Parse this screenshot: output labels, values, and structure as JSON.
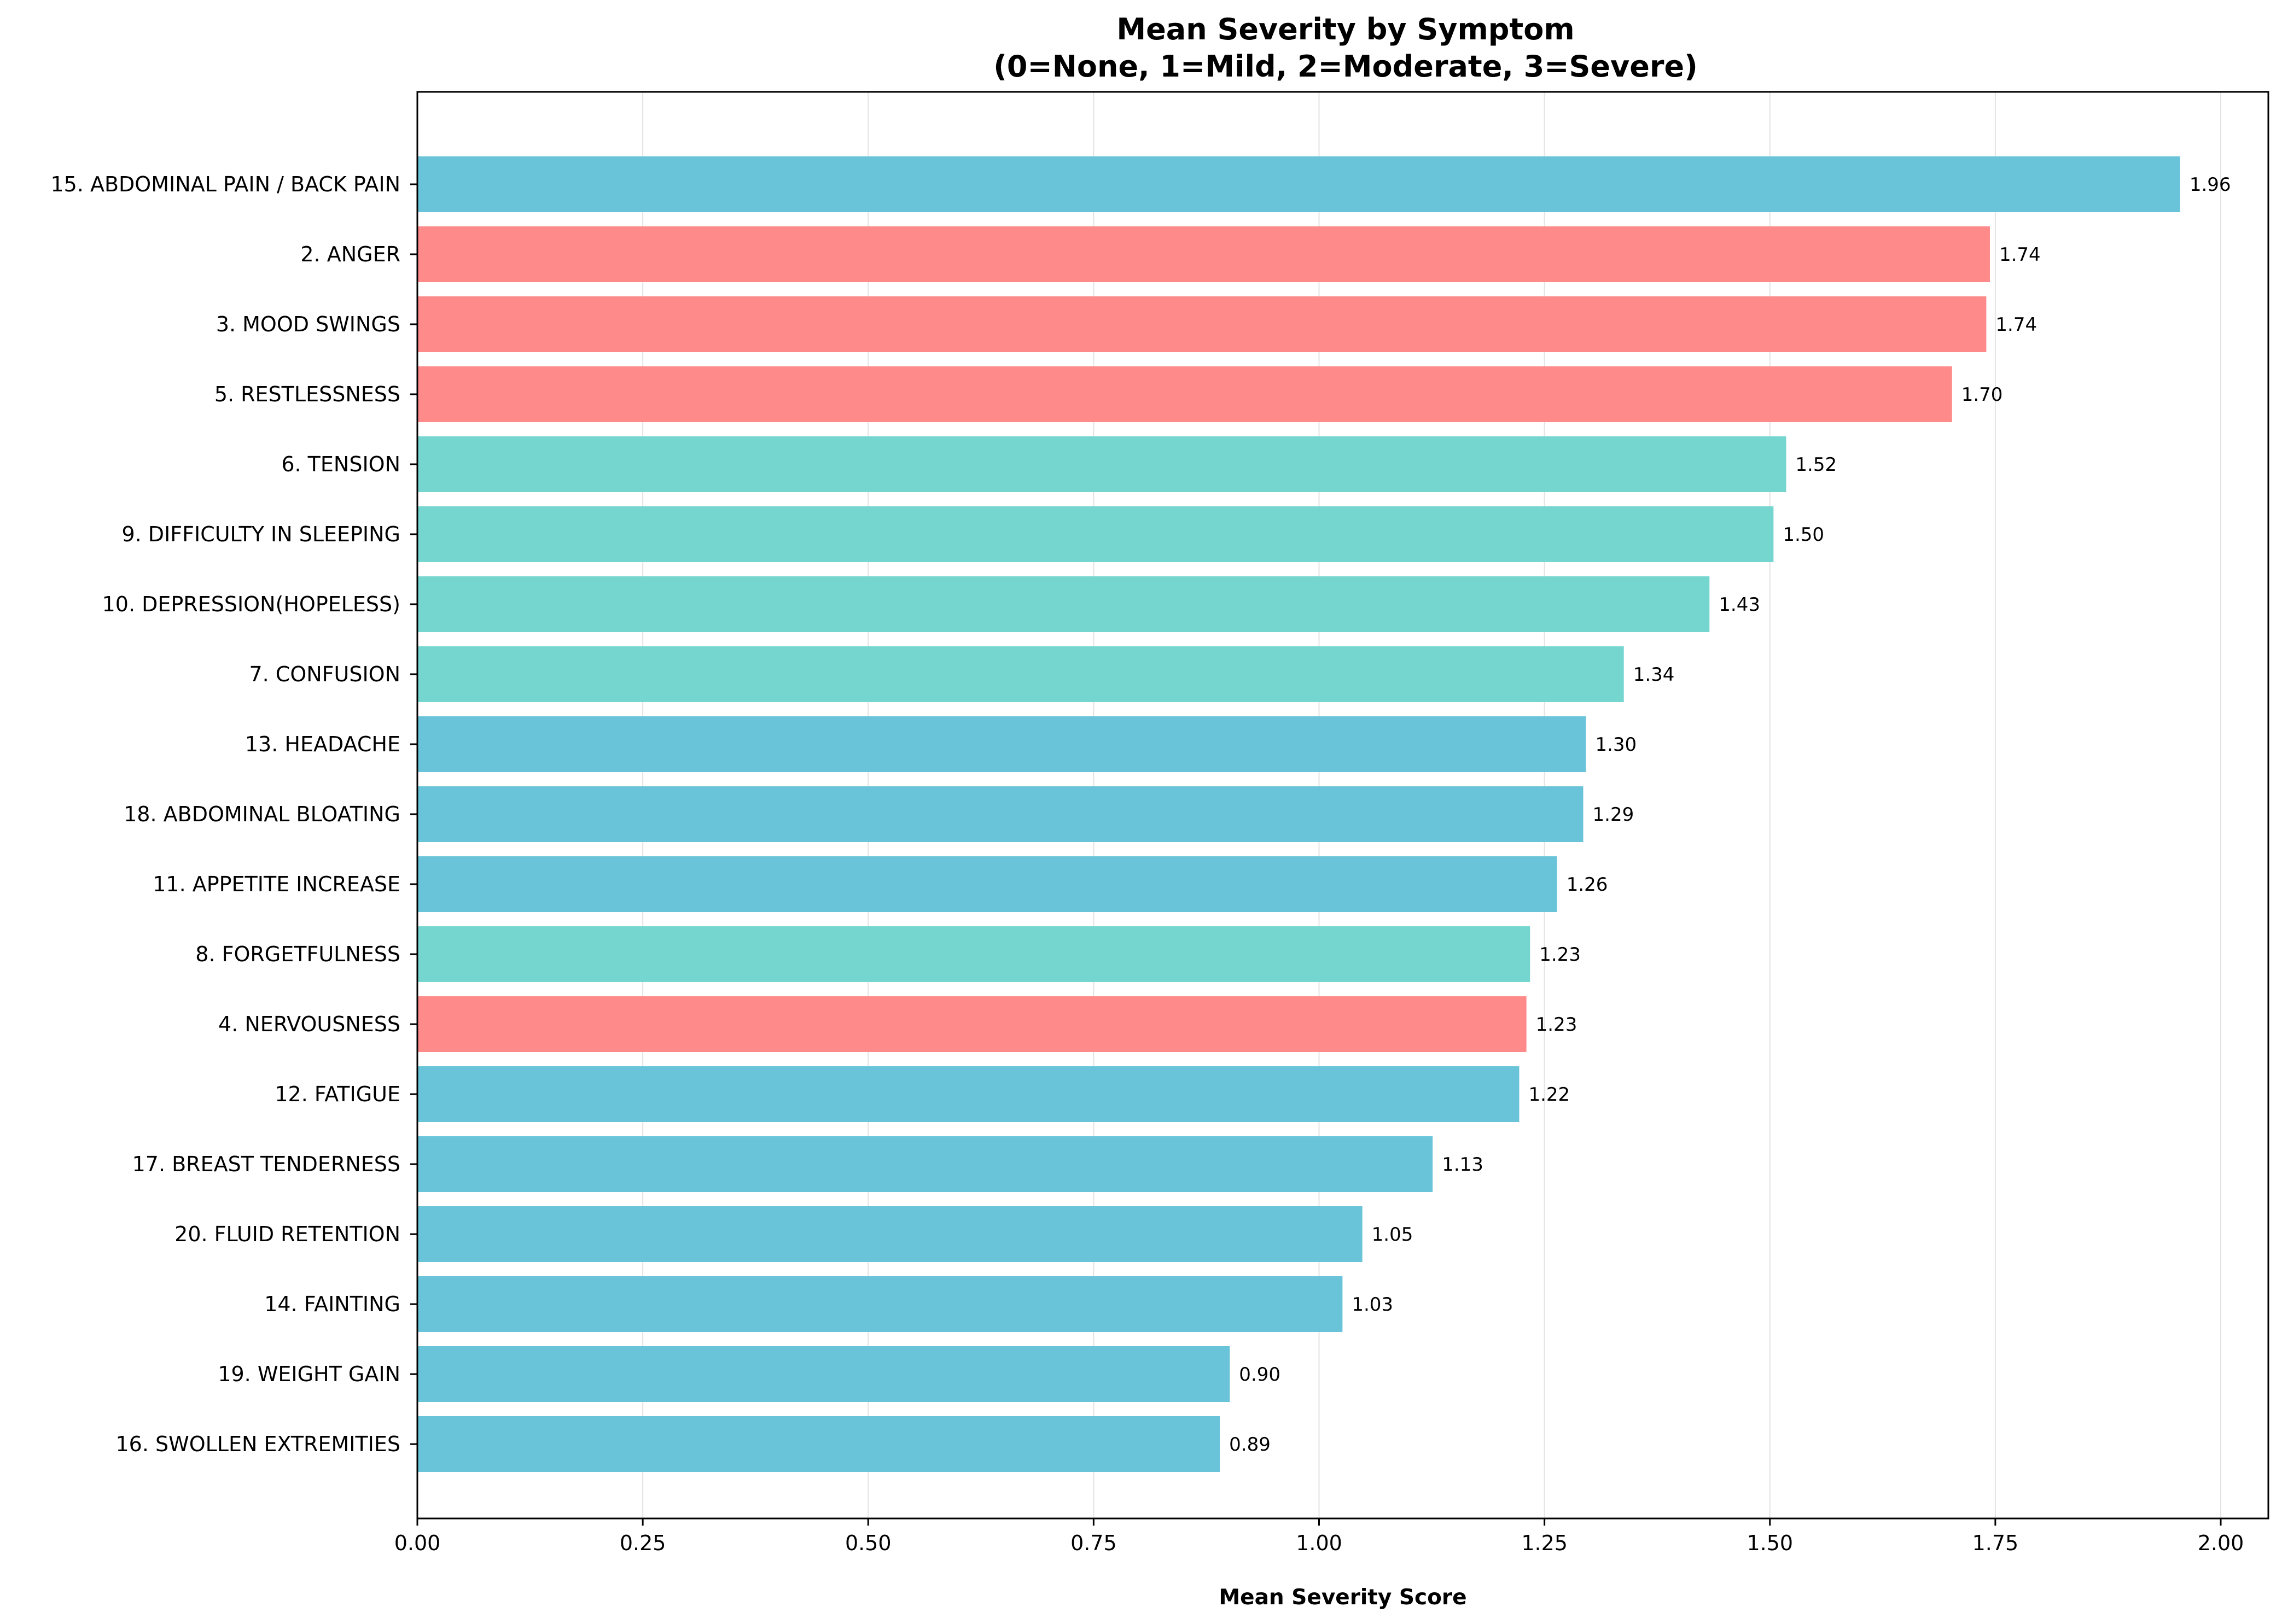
{
  "chart_data": {
    "type": "bar",
    "orientation": "horizontal",
    "title_lines": [
      "Mean Severity by Symptom",
      "(0=None, 1=Mild, 2=Moderate, 3=Severe)"
    ],
    "xlabel": "Mean Severity Score",
    "ylabel": "",
    "xlim": [
      0,
      2.05
    ],
    "xticks": [
      "0.00",
      "0.25",
      "0.50",
      "0.75",
      "1.00",
      "1.25",
      "1.50",
      "1.75",
      "2.00"
    ],
    "grid": "vertical",
    "colors": {
      "physical": "#6AC4D9",
      "emotional": "#FF8A8A",
      "cognitive": "#75D6CF"
    },
    "bars": [
      {
        "label": "15. ABDOMINAL PAIN / BACK PAIN",
        "value": 1.955,
        "text": "1.96",
        "color": "#6AC4D9"
      },
      {
        "label": "2. ANGER",
        "value": 1.744,
        "text": "1.74",
        "color": "#FF8A8A"
      },
      {
        "label": "3. MOOD SWINGS",
        "value": 1.74,
        "text": "1.74",
        "color": "#FF8A8A"
      },
      {
        "label": "5. RESTLESSNESS",
        "value": 1.702,
        "text": "1.70",
        "color": "#FF8A8A"
      },
      {
        "label": "6. TENSION",
        "value": 1.518,
        "text": "1.52",
        "color": "#75D6CF"
      },
      {
        "label": "9. DIFFICULTY IN SLEEPING",
        "value": 1.504,
        "text": "1.50",
        "color": "#75D6CF"
      },
      {
        "label": "10. DEPRESSION(HOPELESS)",
        "value": 1.433,
        "text": "1.43",
        "color": "#75D6CF"
      },
      {
        "label": "7. CONFUSION",
        "value": 1.338,
        "text": "1.34",
        "color": "#75D6CF"
      },
      {
        "label": "13. HEADACHE",
        "value": 1.296,
        "text": "1.30",
        "color": "#6AC4D9"
      },
      {
        "label": "18. ABDOMINAL BLOATING",
        "value": 1.293,
        "text": "1.29",
        "color": "#6AC4D9"
      },
      {
        "label": "11. APPETITE INCREASE",
        "value": 1.264,
        "text": "1.26",
        "color": "#6AC4D9"
      },
      {
        "label": "8. FORGETFULNESS",
        "value": 1.234,
        "text": "1.23",
        "color": "#75D6CF"
      },
      {
        "label": "4. NERVOUSNESS",
        "value": 1.23,
        "text": "1.23",
        "color": "#FF8A8A"
      },
      {
        "label": "12. FATIGUE",
        "value": 1.222,
        "text": "1.22",
        "color": "#6AC4D9"
      },
      {
        "label": "17. BREAST TENDERNESS",
        "value": 1.126,
        "text": "1.13",
        "color": "#6AC4D9"
      },
      {
        "label": "20. FLUID RETENTION",
        "value": 1.048,
        "text": "1.05",
        "color": "#6AC4D9"
      },
      {
        "label": "14. FAINTING",
        "value": 1.026,
        "text": "1.03",
        "color": "#6AC4D9"
      },
      {
        "label": "19. WEIGHT GAIN",
        "value": 0.901,
        "text": "0.90",
        "color": "#6AC4D9"
      },
      {
        "label": "16. SWOLLEN EXTREMITIES",
        "value": 0.89,
        "text": "0.89",
        "color": "#6AC4D9"
      }
    ]
  }
}
